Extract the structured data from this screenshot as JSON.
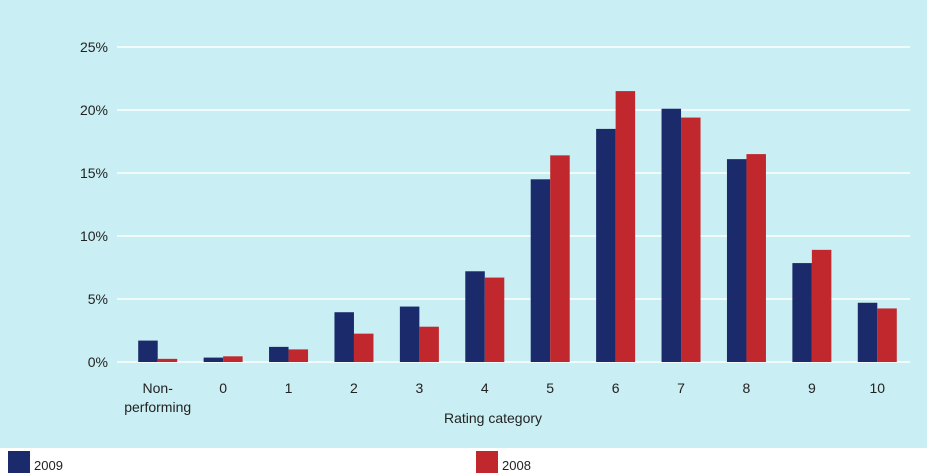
{
  "chart_data": {
    "type": "bar",
    "categories": [
      "Non-\nperforming",
      "0",
      "1",
      "2",
      "3",
      "4",
      "5",
      "6",
      "7",
      "8",
      "9",
      "10"
    ],
    "series": [
      {
        "name": "2009",
        "color": "#1b2a6b",
        "values": [
          1.7,
          0.35,
          1.2,
          3.95,
          4.4,
          7.2,
          14.5,
          18.5,
          20.1,
          16.1,
          7.85,
          4.7
        ]
      },
      {
        "name": "2008",
        "color": "#c0282d",
        "values": [
          0.25,
          0.45,
          1.0,
          2.25,
          2.8,
          6.7,
          16.4,
          21.5,
          19.4,
          16.5,
          8.9,
          4.25
        ]
      }
    ],
    "xlabel": "Rating category",
    "ylabel": "",
    "ylim": [
      0,
      25
    ],
    "yticks": [
      "0%",
      "5%",
      "10%",
      "15%",
      "20%",
      "25%"
    ],
    "grid": true,
    "legend": "bottom",
    "background": "#c9eef3"
  },
  "legend": {
    "item_2009": "2009",
    "item_2008": "2008"
  }
}
